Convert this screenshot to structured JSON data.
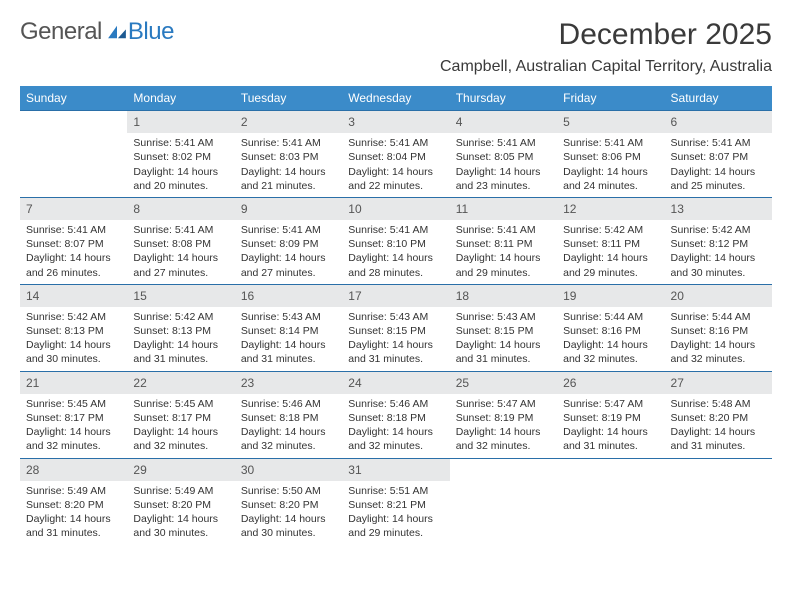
{
  "logo": {
    "part1": "General",
    "part2": "Blue"
  },
  "title": "December 2025",
  "location": "Campbell, Australian Capital Territory, Australia",
  "columns": [
    "Sunday",
    "Monday",
    "Tuesday",
    "Wednesday",
    "Thursday",
    "Friday",
    "Saturday"
  ],
  "colors": {
    "header_bg": "#3b8bc9",
    "header_text": "#ffffff",
    "daynum_bg": "#e7e8e9",
    "row_divider": "#2a6fa8",
    "text": "#333333",
    "logo_gray": "#555555",
    "logo_blue": "#2a7ac0",
    "background": "#ffffff"
  },
  "weeks": [
    [
      {
        "n": "",
        "lines": []
      },
      {
        "n": "1",
        "lines": [
          "Sunrise: 5:41 AM",
          "Sunset: 8:02 PM",
          "Daylight: 14 hours",
          "and 20 minutes."
        ]
      },
      {
        "n": "2",
        "lines": [
          "Sunrise: 5:41 AM",
          "Sunset: 8:03 PM",
          "Daylight: 14 hours",
          "and 21 minutes."
        ]
      },
      {
        "n": "3",
        "lines": [
          "Sunrise: 5:41 AM",
          "Sunset: 8:04 PM",
          "Daylight: 14 hours",
          "and 22 minutes."
        ]
      },
      {
        "n": "4",
        "lines": [
          "Sunrise: 5:41 AM",
          "Sunset: 8:05 PM",
          "Daylight: 14 hours",
          "and 23 minutes."
        ]
      },
      {
        "n": "5",
        "lines": [
          "Sunrise: 5:41 AM",
          "Sunset: 8:06 PM",
          "Daylight: 14 hours",
          "and 24 minutes."
        ]
      },
      {
        "n": "6",
        "lines": [
          "Sunrise: 5:41 AM",
          "Sunset: 8:07 PM",
          "Daylight: 14 hours",
          "and 25 minutes."
        ]
      }
    ],
    [
      {
        "n": "7",
        "lines": [
          "Sunrise: 5:41 AM",
          "Sunset: 8:07 PM",
          "Daylight: 14 hours",
          "and 26 minutes."
        ]
      },
      {
        "n": "8",
        "lines": [
          "Sunrise: 5:41 AM",
          "Sunset: 8:08 PM",
          "Daylight: 14 hours",
          "and 27 minutes."
        ]
      },
      {
        "n": "9",
        "lines": [
          "Sunrise: 5:41 AM",
          "Sunset: 8:09 PM",
          "Daylight: 14 hours",
          "and 27 minutes."
        ]
      },
      {
        "n": "10",
        "lines": [
          "Sunrise: 5:41 AM",
          "Sunset: 8:10 PM",
          "Daylight: 14 hours",
          "and 28 minutes."
        ]
      },
      {
        "n": "11",
        "lines": [
          "Sunrise: 5:41 AM",
          "Sunset: 8:11 PM",
          "Daylight: 14 hours",
          "and 29 minutes."
        ]
      },
      {
        "n": "12",
        "lines": [
          "Sunrise: 5:42 AM",
          "Sunset: 8:11 PM",
          "Daylight: 14 hours",
          "and 29 minutes."
        ]
      },
      {
        "n": "13",
        "lines": [
          "Sunrise: 5:42 AM",
          "Sunset: 8:12 PM",
          "Daylight: 14 hours",
          "and 30 minutes."
        ]
      }
    ],
    [
      {
        "n": "14",
        "lines": [
          "Sunrise: 5:42 AM",
          "Sunset: 8:13 PM",
          "Daylight: 14 hours",
          "and 30 minutes."
        ]
      },
      {
        "n": "15",
        "lines": [
          "Sunrise: 5:42 AM",
          "Sunset: 8:13 PM",
          "Daylight: 14 hours",
          "and 31 minutes."
        ]
      },
      {
        "n": "16",
        "lines": [
          "Sunrise: 5:43 AM",
          "Sunset: 8:14 PM",
          "Daylight: 14 hours",
          "and 31 minutes."
        ]
      },
      {
        "n": "17",
        "lines": [
          "Sunrise: 5:43 AM",
          "Sunset: 8:15 PM",
          "Daylight: 14 hours",
          "and 31 minutes."
        ]
      },
      {
        "n": "18",
        "lines": [
          "Sunrise: 5:43 AM",
          "Sunset: 8:15 PM",
          "Daylight: 14 hours",
          "and 31 minutes."
        ]
      },
      {
        "n": "19",
        "lines": [
          "Sunrise: 5:44 AM",
          "Sunset: 8:16 PM",
          "Daylight: 14 hours",
          "and 32 minutes."
        ]
      },
      {
        "n": "20",
        "lines": [
          "Sunrise: 5:44 AM",
          "Sunset: 8:16 PM",
          "Daylight: 14 hours",
          "and 32 minutes."
        ]
      }
    ],
    [
      {
        "n": "21",
        "lines": [
          "Sunrise: 5:45 AM",
          "Sunset: 8:17 PM",
          "Daylight: 14 hours",
          "and 32 minutes."
        ]
      },
      {
        "n": "22",
        "lines": [
          "Sunrise: 5:45 AM",
          "Sunset: 8:17 PM",
          "Daylight: 14 hours",
          "and 32 minutes."
        ]
      },
      {
        "n": "23",
        "lines": [
          "Sunrise: 5:46 AM",
          "Sunset: 8:18 PM",
          "Daylight: 14 hours",
          "and 32 minutes."
        ]
      },
      {
        "n": "24",
        "lines": [
          "Sunrise: 5:46 AM",
          "Sunset: 8:18 PM",
          "Daylight: 14 hours",
          "and 32 minutes."
        ]
      },
      {
        "n": "25",
        "lines": [
          "Sunrise: 5:47 AM",
          "Sunset: 8:19 PM",
          "Daylight: 14 hours",
          "and 32 minutes."
        ]
      },
      {
        "n": "26",
        "lines": [
          "Sunrise: 5:47 AM",
          "Sunset: 8:19 PM",
          "Daylight: 14 hours",
          "and 31 minutes."
        ]
      },
      {
        "n": "27",
        "lines": [
          "Sunrise: 5:48 AM",
          "Sunset: 8:20 PM",
          "Daylight: 14 hours",
          "and 31 minutes."
        ]
      }
    ],
    [
      {
        "n": "28",
        "lines": [
          "Sunrise: 5:49 AM",
          "Sunset: 8:20 PM",
          "Daylight: 14 hours",
          "and 31 minutes."
        ]
      },
      {
        "n": "29",
        "lines": [
          "Sunrise: 5:49 AM",
          "Sunset: 8:20 PM",
          "Daylight: 14 hours",
          "and 30 minutes."
        ]
      },
      {
        "n": "30",
        "lines": [
          "Sunrise: 5:50 AM",
          "Sunset: 8:20 PM",
          "Daylight: 14 hours",
          "and 30 minutes."
        ]
      },
      {
        "n": "31",
        "lines": [
          "Sunrise: 5:51 AM",
          "Sunset: 8:21 PM",
          "Daylight: 14 hours",
          "and 29 minutes."
        ]
      },
      {
        "n": "",
        "lines": []
      },
      {
        "n": "",
        "lines": []
      },
      {
        "n": "",
        "lines": []
      }
    ]
  ]
}
